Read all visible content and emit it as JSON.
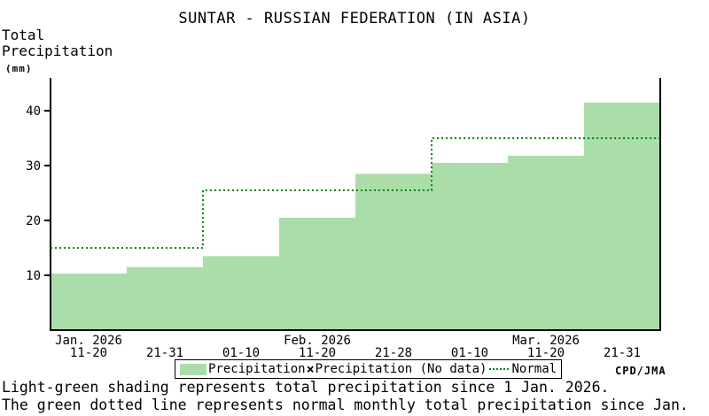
{
  "title": "SUNTAR - RUSSIAN FEDERATION (IN ASIA)",
  "y_axis_label": {
    "line1": "Total",
    "line2": "Precipitation",
    "unit": "(mm)"
  },
  "legend": {
    "precipitation_label": "Precipitation",
    "nodata_symbol": "×",
    "nodata_label": "Precipitation (No data)",
    "normal_symbol": "green-dotted-line",
    "normal_label": "Normal"
  },
  "credit": "CPD/JMA",
  "footer": {
    "line1": "Light-green shading represents total precipitation since 1 Jan. 2026.",
    "line2": "The green dotted line represents normal monthly total precipitation since Jan."
  },
  "chart_data": {
    "type": "area",
    "title": "SUNTAR - RUSSIAN FEDERATION (IN ASIA)",
    "ylabel": "Total Precipitation (mm)",
    "ylim": [
      0,
      46
    ],
    "y_ticks": [
      10,
      20,
      30,
      40
    ],
    "grid": false,
    "legend_position": "bottom",
    "x_dekad_labels": [
      "11-20",
      "21-31",
      "01-10",
      "11-20",
      "21-28",
      "01-10",
      "11-20",
      "21-31"
    ],
    "month_labels": [
      {
        "label": "Jan. 2026",
        "dekad_index": 0
      },
      {
        "label": "Feb. 2026",
        "dekad_index": 3
      },
      {
        "label": "Mar. 2026",
        "dekad_index": 6
      }
    ],
    "series": [
      {
        "name": "Precipitation (cumulative total since 1 Jan. 2026, mm)",
        "style": "step-area",
        "values": [
          10.3,
          11.5,
          13.5,
          20.5,
          28.5,
          30.5,
          31.8,
          41.5
        ]
      },
      {
        "name": "Normal (cumulative normal monthly total, mm)",
        "style": "step-dotted-line",
        "segments": [
          {
            "value": 15,
            "start_dekad": 0,
            "end_dekad": 2
          },
          {
            "value": 25.5,
            "start_dekad": 2,
            "end_dekad": 5
          },
          {
            "value": 35,
            "start_dekad": 5,
            "end_dekad": 8
          }
        ]
      }
    ],
    "colors": {
      "precipitation_fill": "#aaddaa",
      "normal_line": "#008200",
      "axis": "#000000"
    }
  }
}
